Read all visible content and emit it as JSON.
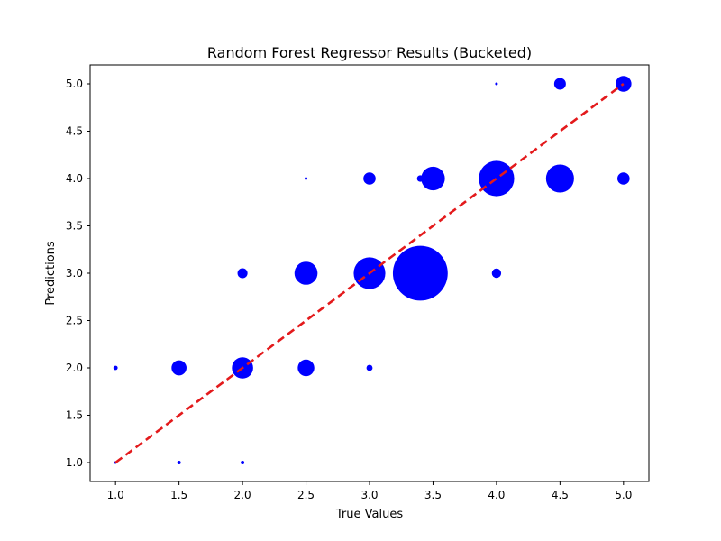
{
  "chart_data": {
    "type": "scatter",
    "title": "Random Forest Regressor Results (Bucketed)",
    "xlabel": "True Values",
    "ylabel": "Predictions",
    "xlim": [
      0.8,
      5.2
    ],
    "ylim": [
      0.8,
      5.2
    ],
    "xticks": [
      "1.0",
      "1.5",
      "2.0",
      "2.5",
      "3.0",
      "3.5",
      "4.0",
      "4.5",
      "5.0"
    ],
    "yticks": [
      "1.0",
      "1.5",
      "2.0",
      "2.5",
      "3.0",
      "3.5",
      "4.0",
      "4.5",
      "5.0"
    ],
    "grid": false,
    "marker_color": "#0000ff",
    "reference_line": {
      "style": "dashed",
      "color": "#e31a1c",
      "x": [
        1.0,
        5.0
      ],
      "y": [
        1.0,
        5.0
      ]
    },
    "points": [
      {
        "x": 1.0,
        "y": 1.0,
        "size": 1
      },
      {
        "x": 1.5,
        "y": 1.0,
        "size": 2
      },
      {
        "x": 2.0,
        "y": 1.0,
        "size": 2
      },
      {
        "x": 1.0,
        "y": 2.0,
        "size": 3
      },
      {
        "x": 1.5,
        "y": 2.0,
        "size": 36
      },
      {
        "x": 2.0,
        "y": 2.0,
        "size": 72
      },
      {
        "x": 2.5,
        "y": 2.0,
        "size": 44
      },
      {
        "x": 3.0,
        "y": 2.0,
        "size": 6
      },
      {
        "x": 2.0,
        "y": 3.0,
        "size": 16
      },
      {
        "x": 2.5,
        "y": 3.0,
        "size": 85
      },
      {
        "x": 3.0,
        "y": 3.0,
        "size": 160
      },
      {
        "x": 3.4,
        "y": 3.0,
        "size": 480
      },
      {
        "x": 4.0,
        "y": 3.0,
        "size": 14
      },
      {
        "x": 2.5,
        "y": 4.0,
        "size": 1
      },
      {
        "x": 3.0,
        "y": 4.0,
        "size": 24
      },
      {
        "x": 3.4,
        "y": 4.0,
        "size": 7
      },
      {
        "x": 3.5,
        "y": 4.0,
        "size": 90
      },
      {
        "x": 4.0,
        "y": 4.0,
        "size": 200
      },
      {
        "x": 4.5,
        "y": 4.0,
        "size": 125
      },
      {
        "x": 5.0,
        "y": 4.0,
        "size": 24
      },
      {
        "x": 4.0,
        "y": 5.0,
        "size": 1
      },
      {
        "x": 4.5,
        "y": 5.0,
        "size": 22
      },
      {
        "x": 5.0,
        "y": 5.0,
        "size": 40
      }
    ]
  }
}
